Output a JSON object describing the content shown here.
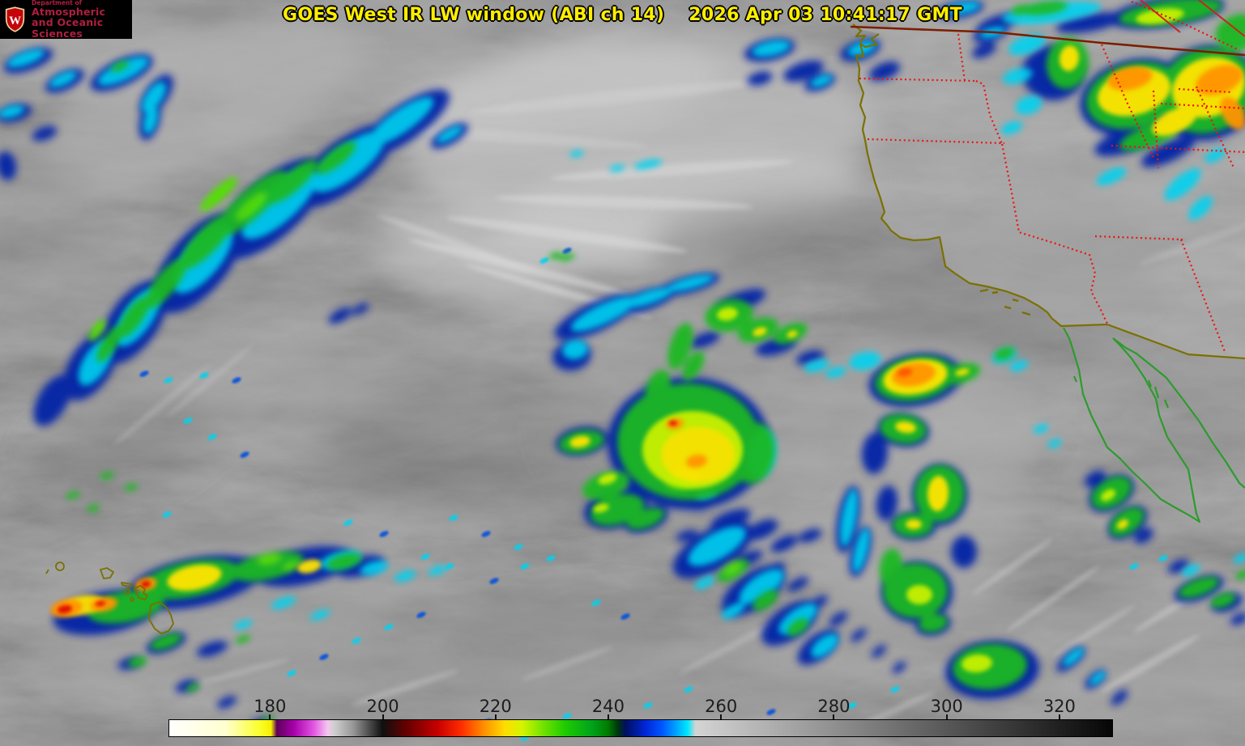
{
  "header": {
    "title": "GOES West IR LW window (ABI ch 14)",
    "timestamp": "2026 Apr 03 10:41:17 GMT",
    "text_color": "#ffee00"
  },
  "logo": {
    "department": "Department of",
    "name_line1": "Atmospheric",
    "name_line2": "and Oceanic Sciences",
    "crest_letter": "W",
    "bg_color": "#000000",
    "text_color": "#b01f3f",
    "crest_red": "#c5050b",
    "crest_trim": "#e8d59b"
  },
  "colorbar": {
    "tick_values": [
      180,
      200,
      220,
      240,
      260,
      280,
      300,
      320
    ],
    "domain": [
      162.0,
      329.5
    ],
    "label_color": "#1c1c1c",
    "border_color": "#000000",
    "stops": [
      {
        "p": 0,
        "c": "#ffffff"
      },
      {
        "p": 6,
        "c": "#ffffcf"
      },
      {
        "p": 9.5,
        "c": "#fbff2e"
      },
      {
        "p": 10.8,
        "c": "#f6ef00"
      },
      {
        "p": 11.4,
        "c": "#5d0059"
      },
      {
        "p": 13.2,
        "c": "#a700aa"
      },
      {
        "p": 15.3,
        "c": "#e255e2"
      },
      {
        "p": 16.8,
        "c": "#f3c7ef"
      },
      {
        "p": 17.5,
        "c": "#cfcfcf"
      },
      {
        "p": 19.5,
        "c": "#979797"
      },
      {
        "p": 22.6,
        "c": "#101010"
      },
      {
        "p": 25,
        "c": "#610000"
      },
      {
        "p": 28.5,
        "c": "#c80000"
      },
      {
        "p": 31,
        "c": "#ff2d00"
      },
      {
        "p": 33.4,
        "c": "#ff9000"
      },
      {
        "p": 35.6,
        "c": "#ffdd00"
      },
      {
        "p": 37.4,
        "c": "#d7f400"
      },
      {
        "p": 39.5,
        "c": "#77e400"
      },
      {
        "p": 42,
        "c": "#1ecb00"
      },
      {
        "p": 44.8,
        "c": "#00a31b"
      },
      {
        "p": 46.5,
        "c": "#007d00"
      },
      {
        "p": 47.6,
        "c": "#003510"
      },
      {
        "p": 48.4,
        "c": "#001060"
      },
      {
        "p": 50.5,
        "c": "#0026d8"
      },
      {
        "p": 52.3,
        "c": "#0057ff"
      },
      {
        "p": 53.8,
        "c": "#00a5ff"
      },
      {
        "p": 55,
        "c": "#00e8ff"
      },
      {
        "p": 55.8,
        "c": "#d4d4d4"
      },
      {
        "p": 100,
        "c": "#060606"
      }
    ]
  },
  "map": {
    "us_coast_color": "#7a7000",
    "mexico_coast_color": "#2d9b2d",
    "state_border_color": "#ee1111",
    "canada_border_color": "#7b1e00",
    "corner_border_color": "#cc2222"
  },
  "enhancement_palette": {
    "navy": "#0020a6",
    "blue": "#0050e0",
    "cyan": "#00d2f0",
    "green": "#1db823",
    "bright_green": "#52e000",
    "yellow_green": "#c8f000",
    "yellow": "#ffe400",
    "orange": "#ff9400",
    "deep_orange": "#ff5000",
    "red": "#e01000"
  }
}
